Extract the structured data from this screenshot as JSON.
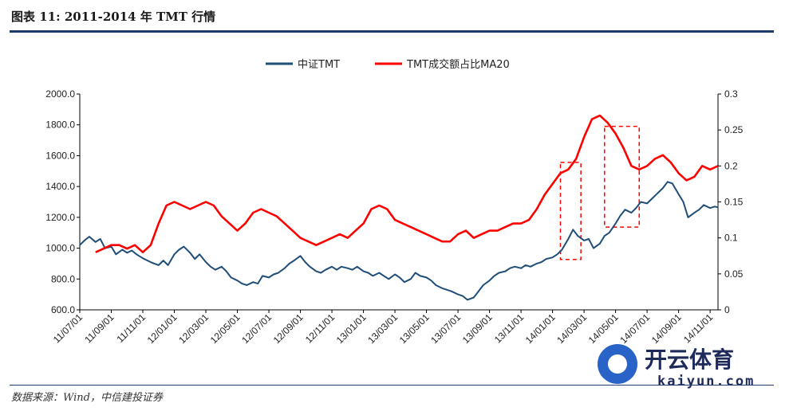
{
  "header": {
    "title": "图表 11: 2011-2014 年 TMT 行情"
  },
  "footer": {
    "source": "数据来源：Wind，中信建投证券"
  },
  "watermark": {
    "brand": "开云体育",
    "site": "kaiyun.com"
  },
  "colors": {
    "index": "#1f4e79",
    "ratio": "#ff0000",
    "box": "#ff0000",
    "axis": "#000000"
  },
  "chart_data": {
    "type": "line",
    "title": "",
    "legend": [
      "中证TMT",
      "TMT成交额占比MA20"
    ],
    "legend_placement": "top-center",
    "x_labels": [
      "11/07/01",
      "11/09/01",
      "11/11/01",
      "12/01/01",
      "12/03/01",
      "12/05/01",
      "12/07/01",
      "12/09/01",
      "12/11/01",
      "13/01/01",
      "13/03/01",
      "13/05/01",
      "13/07/01",
      "13/09/01",
      "13/11/01",
      "14/01/01",
      "14/03/01",
      "14/05/01",
      "14/07/01",
      "14/09/01",
      "14/11/01"
    ],
    "y_left": {
      "min": 600,
      "max": 2000,
      "ticks": [
        "600.0",
        "800.0",
        "1000.0",
        "1200.0",
        "1400.0",
        "1600.0",
        "1800.0",
        "2000.0"
      ]
    },
    "y_right": {
      "min": 0,
      "max": 0.3,
      "ticks": [
        "0",
        "0.05",
        "0.1",
        "0.15",
        "0.2",
        "0.25",
        "0.3"
      ]
    },
    "x_range": [
      0,
      40.5
    ],
    "series": [
      {
        "name": "中证TMT",
        "axis": "left",
        "points": [
          [
            0,
            1020
          ],
          [
            0.3,
            1050
          ],
          [
            0.6,
            1075
          ],
          [
            1,
            1040
          ],
          [
            1.3,
            1060
          ],
          [
            1.6,
            1000
          ],
          [
            2,
            1010
          ],
          [
            2.3,
            960
          ],
          [
            2.7,
            990
          ],
          [
            3,
            970
          ],
          [
            3.3,
            985
          ],
          [
            3.6,
            960
          ],
          [
            4,
            935
          ],
          [
            4.3,
            920
          ],
          [
            4.6,
            905
          ],
          [
            5,
            890
          ],
          [
            5.3,
            920
          ],
          [
            5.6,
            890
          ],
          [
            6,
            960
          ],
          [
            6.3,
            990
          ],
          [
            6.6,
            1010
          ],
          [
            7,
            970
          ],
          [
            7.3,
            930
          ],
          [
            7.6,
            960
          ],
          [
            8,
            910
          ],
          [
            8.3,
            880
          ],
          [
            8.6,
            860
          ],
          [
            9,
            880
          ],
          [
            9.3,
            850
          ],
          [
            9.6,
            810
          ],
          [
            10,
            790
          ],
          [
            10.3,
            770
          ],
          [
            10.6,
            760
          ],
          [
            11,
            780
          ],
          [
            11.3,
            770
          ],
          [
            11.6,
            820
          ],
          [
            12,
            810
          ],
          [
            12.3,
            830
          ],
          [
            12.6,
            840
          ],
          [
            13,
            870
          ],
          [
            13.3,
            900
          ],
          [
            13.6,
            920
          ],
          [
            14,
            950
          ],
          [
            14.3,
            910
          ],
          [
            14.6,
            880
          ],
          [
            15,
            850
          ],
          [
            15.3,
            840
          ],
          [
            15.6,
            860
          ],
          [
            16,
            880
          ],
          [
            16.3,
            860
          ],
          [
            16.6,
            880
          ],
          [
            17,
            870
          ],
          [
            17.3,
            860
          ],
          [
            17.6,
            880
          ],
          [
            18,
            850
          ],
          [
            18.3,
            840
          ],
          [
            18.6,
            820
          ],
          [
            19,
            840
          ],
          [
            19.3,
            820
          ],
          [
            19.6,
            800
          ],
          [
            20,
            830
          ],
          [
            20.3,
            810
          ],
          [
            20.6,
            780
          ],
          [
            21,
            800
          ],
          [
            21.3,
            840
          ],
          [
            21.6,
            820
          ],
          [
            22,
            810
          ],
          [
            22.3,
            790
          ],
          [
            22.6,
            760
          ],
          [
            23,
            740
          ],
          [
            23.3,
            730
          ],
          [
            23.6,
            720
          ],
          [
            24,
            700
          ],
          [
            24.3,
            690
          ],
          [
            24.6,
            665
          ],
          [
            25,
            680
          ],
          [
            25.3,
            720
          ],
          [
            25.6,
            760
          ],
          [
            26,
            790
          ],
          [
            26.3,
            820
          ],
          [
            26.6,
            840
          ],
          [
            27,
            850
          ],
          [
            27.3,
            870
          ],
          [
            27.6,
            880
          ],
          [
            28,
            870
          ],
          [
            28.3,
            890
          ],
          [
            28.6,
            880
          ],
          [
            29,
            900
          ],
          [
            29.3,
            910
          ],
          [
            29.6,
            930
          ],
          [
            30,
            940
          ],
          [
            30.3,
            960
          ],
          [
            30.6,
            990
          ],
          [
            31,
            1060
          ],
          [
            31.3,
            1120
          ],
          [
            31.6,
            1080
          ],
          [
            32,
            1050
          ],
          [
            32.3,
            1060
          ],
          [
            32.6,
            1000
          ],
          [
            33,
            1030
          ],
          [
            33.3,
            1080
          ],
          [
            33.6,
            1100
          ],
          [
            34,
            1160
          ],
          [
            34.3,
            1210
          ],
          [
            34.6,
            1250
          ],
          [
            35,
            1230
          ],
          [
            35.3,
            1260
          ],
          [
            35.6,
            1300
          ],
          [
            36,
            1290
          ],
          [
            36.3,
            1320
          ],
          [
            36.6,
            1350
          ],
          [
            37,
            1390
          ],
          [
            37.3,
            1430
          ],
          [
            37.6,
            1420
          ],
          [
            38,
            1350
          ],
          [
            38.3,
            1300
          ],
          [
            38.6,
            1200
          ],
          [
            39,
            1230
          ],
          [
            39.3,
            1250
          ],
          [
            39.6,
            1280
          ],
          [
            40,
            1260
          ],
          [
            40.3,
            1270
          ],
          [
            40.5,
            1265
          ]
        ]
      },
      {
        "name": "TMT成交额占比MA20",
        "axis": "right",
        "points": [
          [
            1,
            0.08
          ],
          [
            1.5,
            0.085
          ],
          [
            2,
            0.09
          ],
          [
            2.5,
            0.09
          ],
          [
            3,
            0.085
          ],
          [
            3.5,
            0.09
          ],
          [
            4,
            0.08
          ],
          [
            4.5,
            0.09
          ],
          [
            5,
            0.12
          ],
          [
            5.5,
            0.145
          ],
          [
            6,
            0.15
          ],
          [
            6.5,
            0.145
          ],
          [
            7,
            0.14
          ],
          [
            7.5,
            0.145
          ],
          [
            8,
            0.15
          ],
          [
            8.5,
            0.145
          ],
          [
            9,
            0.13
          ],
          [
            9.5,
            0.12
          ],
          [
            10,
            0.11
          ],
          [
            10.5,
            0.12
          ],
          [
            11,
            0.135
          ],
          [
            11.5,
            0.14
          ],
          [
            12,
            0.135
          ],
          [
            12.5,
            0.13
          ],
          [
            13,
            0.12
          ],
          [
            13.5,
            0.11
          ],
          [
            14,
            0.1
          ],
          [
            14.5,
            0.095
          ],
          [
            15,
            0.09
          ],
          [
            15.5,
            0.095
          ],
          [
            16,
            0.1
          ],
          [
            16.5,
            0.105
          ],
          [
            17,
            0.1
          ],
          [
            17.5,
            0.11
          ],
          [
            18,
            0.12
          ],
          [
            18.5,
            0.14
          ],
          [
            19,
            0.145
          ],
          [
            19.5,
            0.14
          ],
          [
            20,
            0.125
          ],
          [
            20.5,
            0.12
          ],
          [
            21,
            0.115
          ],
          [
            21.5,
            0.11
          ],
          [
            22,
            0.105
          ],
          [
            22.5,
            0.1
          ],
          [
            23,
            0.095
          ],
          [
            23.5,
            0.095
          ],
          [
            24,
            0.105
          ],
          [
            24.5,
            0.11
          ],
          [
            25,
            0.1
          ],
          [
            25.5,
            0.105
          ],
          [
            26,
            0.11
          ],
          [
            26.5,
            0.11
          ],
          [
            27,
            0.115
          ],
          [
            27.5,
            0.12
          ],
          [
            28,
            0.12
          ],
          [
            28.5,
            0.125
          ],
          [
            29,
            0.14
          ],
          [
            29.5,
            0.16
          ],
          [
            30,
            0.175
          ],
          [
            30.5,
            0.19
          ],
          [
            31,
            0.195
          ],
          [
            31.5,
            0.21
          ],
          [
            32,
            0.24
          ],
          [
            32.5,
            0.265
          ],
          [
            33,
            0.27
          ],
          [
            33.5,
            0.26
          ],
          [
            34,
            0.245
          ],
          [
            34.5,
            0.225
          ],
          [
            35,
            0.2
          ],
          [
            35.5,
            0.195
          ],
          [
            36,
            0.2
          ],
          [
            36.5,
            0.21
          ],
          [
            37,
            0.215
          ],
          [
            37.5,
            0.205
          ],
          [
            38,
            0.19
          ],
          [
            38.5,
            0.18
          ],
          [
            39,
            0.185
          ],
          [
            39.5,
            0.2
          ],
          [
            40,
            0.195
          ],
          [
            40.5,
            0.2
          ]
        ]
      }
    ],
    "annotations": [
      {
        "type": "dashed-box",
        "x": [
          30.5,
          31.8
        ],
        "y_right": [
          0.07,
          0.205
        ]
      },
      {
        "type": "dashed-box",
        "x": [
          33.3,
          35.5
        ],
        "y_right": [
          0.115,
          0.255
        ]
      }
    ]
  }
}
